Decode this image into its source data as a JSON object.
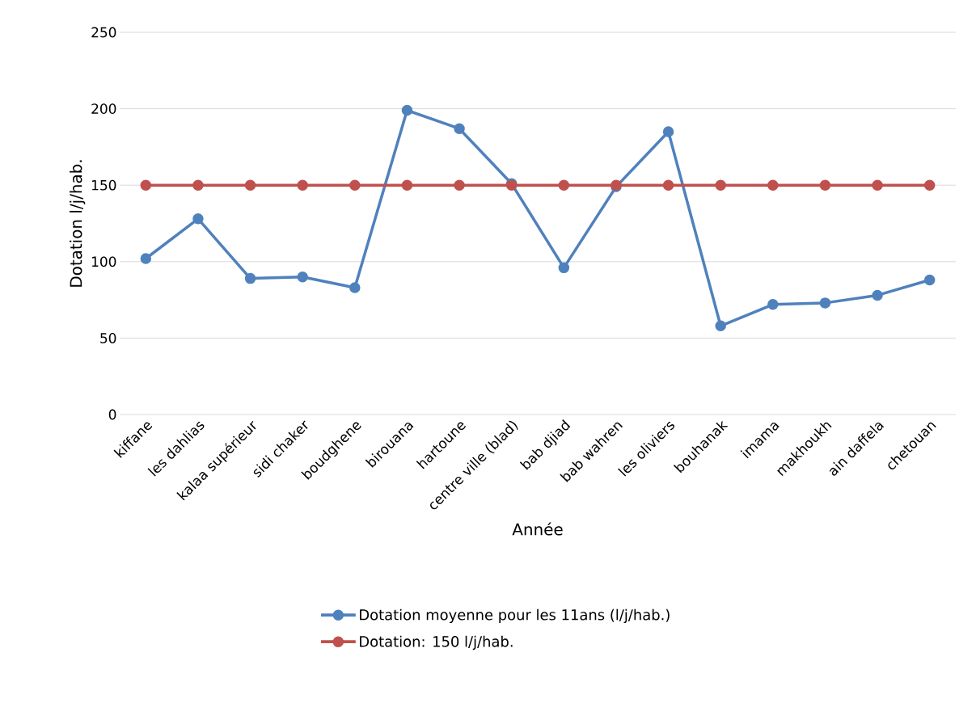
{
  "chart_data": {
    "type": "line",
    "xlabel": "Année",
    "ylabel": "Dotation l/j/hab.",
    "categories": [
      "kiffane",
      "les dahlias",
      "kalaa supérieur",
      "sidi chaker",
      "boudghene",
      "birouana",
      "hartoune",
      "centre ville (blad)",
      "bab djiad",
      "bab wahren",
      "les oliviers",
      "bouhanak",
      "imama",
      "makhoukh",
      "ain daffela",
      "chetouan"
    ],
    "series": [
      {
        "name": "Dotation moyenne pour les 11ans (l/j/hab.)",
        "color": "#4f81bd",
        "values": [
          102,
          128,
          89,
          90,
          83,
          199,
          187,
          151,
          96,
          149,
          185,
          58,
          72,
          73,
          78,
          88
        ]
      },
      {
        "name": "Dotation: 150 l/j/hab.",
        "color": "#c0504d",
        "values": [
          150,
          150,
          150,
          150,
          150,
          150,
          150,
          150,
          150,
          150,
          150,
          150,
          150,
          150,
          150,
          150
        ]
      }
    ],
    "ylim": [
      0,
      250
    ],
    "yticks": [
      0,
      50,
      100,
      150,
      200,
      250
    ],
    "grid": "y",
    "legend": "bottom",
    "marker": "circle",
    "line_style": "solid"
  }
}
